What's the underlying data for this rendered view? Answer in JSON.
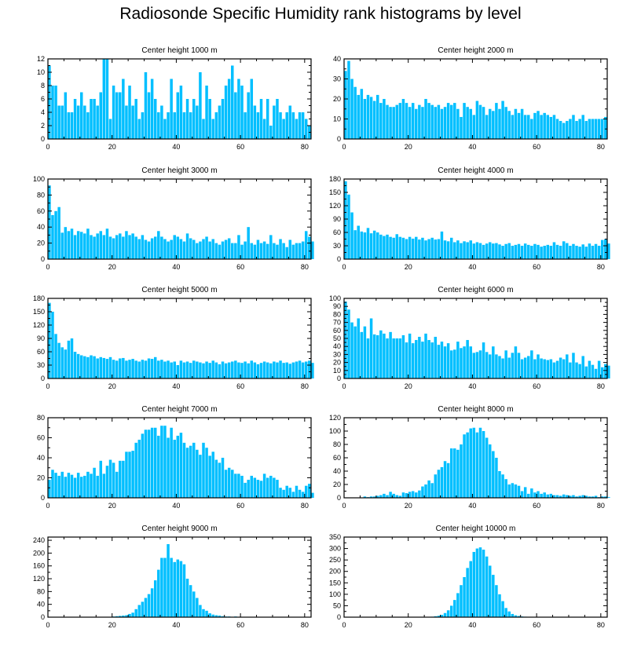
{
  "title": "Radiosonde Specific Humidity rank histograms by level",
  "bar_color": "#00BFFF",
  "chart_data": [
    {
      "type": "bar",
      "title": "Center height 1000 m",
      "xlabel": "",
      "ylabel": "",
      "xlim": [
        0,
        82
      ],
      "ylim": [
        0,
        12
      ],
      "xticks": [
        0,
        20,
        40,
        60,
        80
      ],
      "yticks": [
        0,
        2,
        4,
        6,
        8,
        10,
        12
      ],
      "values": [
        11,
        8,
        8,
        5,
        5,
        7,
        4,
        4,
        6,
        5,
        7,
        5,
        4,
        6,
        6,
        5,
        7,
        12,
        12,
        3,
        8,
        7,
        7,
        9,
        5,
        8,
        5,
        6,
        3,
        4,
        10,
        7,
        9,
        6,
        4,
        5,
        3,
        4,
        9,
        4,
        7,
        8,
        4,
        6,
        4,
        6,
        5,
        10,
        3,
        8,
        6,
        3,
        4,
        5,
        6,
        8,
        9,
        11,
        7,
        9,
        8,
        4,
        7,
        9,
        5,
        4,
        6,
        3,
        6,
        2,
        5,
        6,
        4,
        3,
        4,
        5,
        4,
        3,
        4,
        4,
        3,
        2
      ]
    },
    {
      "type": "bar",
      "title": "Center height 2000 m",
      "xlabel": "",
      "ylabel": "",
      "xlim": [
        0,
        82
      ],
      "ylim": [
        0,
        40
      ],
      "xticks": [
        0,
        20,
        40,
        60,
        80
      ],
      "yticks": [
        0,
        10,
        20,
        30,
        40
      ],
      "values": [
        34,
        39,
        30,
        26,
        22,
        25,
        20,
        22,
        21,
        19,
        22,
        18,
        20,
        17,
        16,
        16,
        17,
        18,
        20,
        18,
        16,
        18,
        15,
        17,
        16,
        20,
        18,
        17,
        16,
        17,
        15,
        16,
        18,
        17,
        18,
        15,
        11,
        18,
        16,
        15,
        12,
        19,
        17,
        16,
        12,
        15,
        14,
        18,
        15,
        19,
        16,
        14,
        12,
        15,
        13,
        15,
        12,
        12,
        10,
        13,
        14,
        12,
        13,
        12,
        11,
        12,
        10,
        9,
        8,
        9,
        10,
        12,
        9,
        10,
        12,
        9,
        10,
        10,
        10,
        10,
        10,
        11
      ]
    },
    {
      "type": "bar",
      "title": "Center height 3000 m",
      "xlabel": "",
      "ylabel": "",
      "xlim": [
        0,
        82
      ],
      "ylim": [
        0,
        100
      ],
      "xticks": [
        0,
        20,
        40,
        60,
        80
      ],
      "yticks": [
        0,
        20,
        40,
        60,
        80,
        100
      ],
      "values": [
        92,
        55,
        60,
        65,
        33,
        40,
        35,
        38,
        30,
        35,
        34,
        32,
        38,
        30,
        28,
        32,
        35,
        30,
        38,
        28,
        26,
        30,
        32,
        28,
        35,
        30,
        32,
        28,
        25,
        30,
        24,
        22,
        26,
        28,
        35,
        28,
        25,
        22,
        24,
        30,
        28,
        25,
        22,
        32,
        26,
        24,
        20,
        22,
        25,
        28,
        22,
        25,
        20,
        18,
        22,
        24,
        26,
        20,
        20,
        30,
        18,
        22,
        40,
        20,
        18,
        24,
        20,
        22,
        19,
        30,
        20,
        18,
        25,
        20,
        15,
        24,
        18,
        20,
        20,
        22,
        35,
        28,
        22
      ]
    },
    {
      "type": "bar",
      "title": "Center height 4000 m",
      "xlabel": "",
      "ylabel": "",
      "xlim": [
        0,
        82
      ],
      "ylim": [
        0,
        180
      ],
      "xticks": [
        0,
        20,
        40,
        60,
        80
      ],
      "yticks": [
        0,
        30,
        60,
        90,
        120,
        150,
        180
      ],
      "values": [
        175,
        145,
        105,
        65,
        75,
        62,
        60,
        70,
        58,
        64,
        60,
        55,
        52,
        55,
        50,
        48,
        56,
        50,
        48,
        45,
        50,
        46,
        50,
        44,
        48,
        42,
        45,
        48,
        44,
        45,
        62,
        42,
        40,
        48,
        38,
        42,
        36,
        40,
        38,
        42,
        35,
        38,
        36,
        32,
        35,
        38,
        35,
        36,
        33,
        30,
        34,
        36,
        30,
        32,
        34,
        30,
        35,
        32,
        30,
        34,
        32,
        28,
        30,
        32,
        30,
        38,
        32,
        30,
        40,
        36,
        30,
        34,
        30,
        28,
        33,
        28,
        35,
        30,
        34,
        30,
        43,
        45,
        35
      ]
    },
    {
      "type": "bar",
      "title": "Center height 5000 m",
      "xlabel": "",
      "ylabel": "",
      "xlim": [
        0,
        82
      ],
      "ylim": [
        0,
        180
      ],
      "xticks": [
        0,
        20,
        40,
        60,
        80
      ],
      "yticks": [
        0,
        30,
        60,
        90,
        120,
        150,
        180
      ],
      "values": [
        170,
        150,
        100,
        80,
        70,
        65,
        85,
        90,
        60,
        55,
        52,
        50,
        48,
        52,
        50,
        45,
        48,
        46,
        44,
        48,
        42,
        40,
        45,
        46,
        40,
        42,
        44,
        40,
        38,
        42,
        40,
        45,
        44,
        48,
        40,
        42,
        38,
        40,
        36,
        38,
        30,
        40,
        36,
        38,
        35,
        40,
        38,
        36,
        34,
        38,
        35,
        40,
        36,
        32,
        38,
        34,
        36,
        38,
        40,
        36,
        35,
        38,
        34,
        40,
        36,
        32,
        35,
        38,
        36,
        34,
        38,
        36,
        40,
        35,
        36,
        33,
        36,
        38,
        40,
        36,
        38,
        40,
        35
      ]
    },
    {
      "type": "bar",
      "title": "Center height 6000 m",
      "xlabel": "",
      "ylabel": "",
      "xlim": [
        0,
        82
      ],
      "ylim": [
        0,
        100
      ],
      "xticks": [
        0,
        20,
        40,
        60,
        80
      ],
      "yticks": [
        0,
        10,
        20,
        30,
        40,
        50,
        60,
        70,
        80,
        90,
        100
      ],
      "values": [
        96,
        86,
        70,
        65,
        75,
        58,
        65,
        50,
        75,
        55,
        54,
        60,
        56,
        50,
        58,
        50,
        50,
        50,
        54,
        45,
        56,
        44,
        48,
        52,
        46,
        56,
        48,
        45,
        52,
        42,
        46,
        40,
        44,
        35,
        36,
        46,
        38,
        40,
        48,
        40,
        32,
        33,
        35,
        45,
        33,
        30,
        40,
        30,
        28,
        25,
        35,
        26,
        32,
        40,
        32,
        24,
        26,
        28,
        35,
        24,
        30,
        25,
        24,
        23,
        24,
        20,
        22,
        26,
        24,
        30,
        20,
        32,
        20,
        18,
        28,
        15,
        22,
        17,
        12,
        22,
        14,
        18,
        16
      ]
    },
    {
      "type": "bar",
      "title": "Center height 7000 m",
      "xlabel": "",
      "ylabel": "",
      "xlim": [
        0,
        82
      ],
      "ylim": [
        0,
        80
      ],
      "xticks": [
        0,
        20,
        40,
        60,
        80
      ],
      "yticks": [
        0,
        20,
        40,
        60,
        80
      ],
      "values": [
        18,
        28,
        25,
        22,
        26,
        21,
        25,
        23,
        20,
        25,
        21,
        22,
        26,
        24,
        30,
        22,
        37,
        24,
        32,
        38,
        35,
        26,
        37,
        37,
        46,
        46,
        47,
        55,
        58,
        64,
        68,
        68,
        70,
        70,
        62,
        72,
        72,
        60,
        70,
        58,
        62,
        65,
        55,
        50,
        52,
        55,
        48,
        43,
        55,
        50,
        42,
        46,
        38,
        35,
        40,
        28,
        30,
        28,
        24,
        24,
        22,
        15,
        18,
        22,
        20,
        18,
        17,
        24,
        20,
        22,
        20,
        18,
        10,
        8,
        12,
        10,
        6,
        12,
        8,
        6,
        12,
        14,
        5
      ]
    },
    {
      "type": "bar",
      "title": "Center height 8000 m",
      "xlabel": "",
      "ylabel": "",
      "xlim": [
        0,
        82
      ],
      "ylim": [
        0,
        120
      ],
      "xticks": [
        0,
        20,
        40,
        60,
        80
      ],
      "yticks": [
        0,
        20,
        40,
        60,
        80,
        100,
        120
      ],
      "values": [
        0,
        0,
        0,
        0,
        0,
        0,
        2,
        1,
        2,
        2,
        3,
        4,
        6,
        4,
        9,
        6,
        4,
        3,
        8,
        7,
        9,
        10,
        8,
        11,
        17,
        20,
        26,
        22,
        35,
        42,
        46,
        55,
        52,
        74,
        74,
        72,
        80,
        95,
        98,
        104,
        105,
        98,
        105,
        100,
        90,
        80,
        70,
        60,
        40,
        35,
        28,
        20,
        22,
        20,
        18,
        10,
        16,
        6,
        14,
        8,
        10,
        6,
        8,
        5,
        6,
        4,
        4,
        3,
        5,
        4,
        3,
        4,
        2,
        3,
        4,
        3,
        2,
        2,
        3,
        1,
        2,
        2,
        1
      ]
    },
    {
      "type": "bar",
      "title": "Center height 9000 m",
      "xlabel": "",
      "ylabel": "",
      "xlim": [
        0,
        82
      ],
      "ylim": [
        0,
        250
      ],
      "xticks": [
        0,
        20,
        40,
        60,
        80
      ],
      "yticks": [
        0,
        40,
        80,
        120,
        160,
        200,
        240
      ],
      "values": [
        0,
        0,
        0,
        0,
        0,
        0,
        0,
        0,
        0,
        0,
        0,
        0,
        0,
        0,
        0,
        0,
        0,
        0,
        0,
        0,
        2,
        3,
        4,
        5,
        6,
        10,
        14,
        25,
        38,
        48,
        60,
        72,
        90,
        115,
        148,
        185,
        185,
        228,
        185,
        172,
        180,
        175,
        165,
        120,
        100,
        80,
        60,
        38,
        25,
        20,
        12,
        8,
        6,
        5,
        3,
        2,
        2,
        1,
        2,
        1,
        0,
        1,
        1,
        0,
        0,
        0,
        0,
        0,
        0,
        0,
        0,
        0,
        0,
        0,
        0,
        0,
        0,
        0,
        0,
        0,
        0,
        0,
        0
      ]
    },
    {
      "type": "bar",
      "title": "Center height 10000 m",
      "xlabel": "",
      "ylabel": "",
      "xlim": [
        0,
        82
      ],
      "ylim": [
        0,
        350
      ],
      "xticks": [
        0,
        20,
        40,
        60,
        80
      ],
      "yticks": [
        0,
        50,
        100,
        150,
        200,
        250,
        300,
        350
      ],
      "values": [
        0,
        0,
        0,
        0,
        0,
        0,
        0,
        0,
        0,
        0,
        0,
        0,
        0,
        0,
        0,
        0,
        0,
        0,
        0,
        0,
        0,
        0,
        0,
        0,
        0,
        0,
        1,
        2,
        4,
        6,
        10,
        18,
        30,
        50,
        75,
        105,
        140,
        175,
        215,
        245,
        285,
        300,
        305,
        295,
        265,
        225,
        185,
        140,
        100,
        70,
        40,
        25,
        14,
        8,
        5,
        3,
        2,
        1,
        1,
        0,
        0,
        0,
        0,
        0,
        0,
        0,
        0,
        0,
        0,
        0,
        0,
        0,
        0,
        0,
        0,
        0,
        0,
        0,
        0,
        0,
        0,
        0,
        0
      ]
    }
  ]
}
